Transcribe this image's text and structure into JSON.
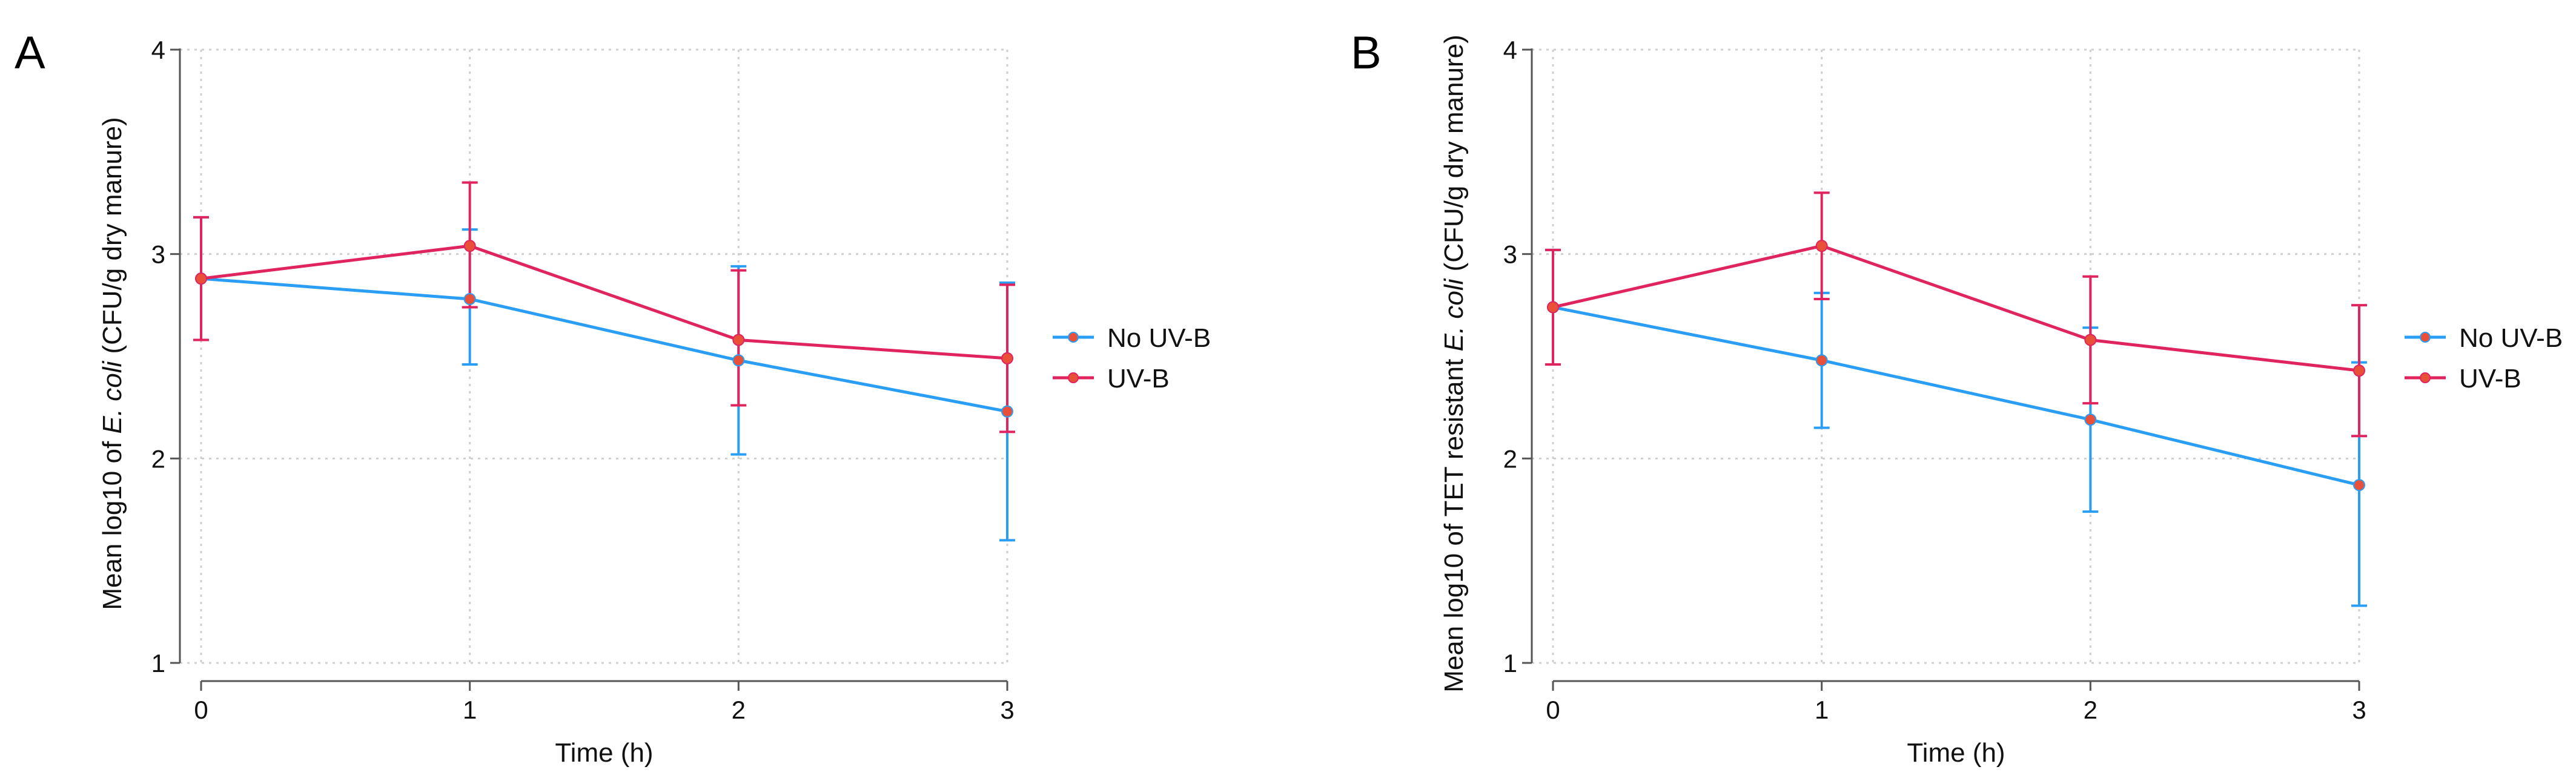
{
  "colors": {
    "no_uvb": "#2a9df4",
    "uvb": "#e0245e",
    "marker": "#e8503a",
    "grid": "#cfcfcf",
    "axis": "#555555"
  },
  "chart_data": [
    {
      "panel_label": "A",
      "type": "line",
      "xlabel": "Time (h)",
      "ylabel_parts": [
        "Mean log10 of ",
        "E. coli",
        " (CFU/g dry manure)"
      ],
      "x": [
        0,
        1,
        2,
        3
      ],
      "x_ticks": [
        "0",
        "1",
        "2",
        "3"
      ],
      "xlim": [
        0,
        3
      ],
      "y_ticks": [
        "1",
        "2",
        "3",
        "4"
      ],
      "ylim": [
        1,
        4
      ],
      "grid": true,
      "legend_position": "right",
      "series": [
        {
          "name": "No UV-B",
          "color": "#2a9df4",
          "values": [
            2.88,
            2.78,
            2.48,
            2.23
          ],
          "err_low": [
            2.58,
            2.46,
            2.02,
            1.6
          ],
          "err_high": [
            3.18,
            3.12,
            2.94,
            2.86
          ]
        },
        {
          "name": "UV-B",
          "color": "#e0245e",
          "values": [
            2.88,
            3.04,
            2.58,
            2.49
          ],
          "err_low": [
            2.58,
            2.74,
            2.26,
            2.13
          ],
          "err_high": [
            3.18,
            3.35,
            2.92,
            2.85
          ]
        }
      ]
    },
    {
      "panel_label": "B",
      "type": "line",
      "xlabel": "Time (h)",
      "ylabel_parts": [
        "Mean log10 of TET resistant ",
        "E. coli",
        " (CFU/g dry manure)"
      ],
      "x": [
        0,
        1,
        2,
        3
      ],
      "x_ticks": [
        "0",
        "1",
        "2",
        "3"
      ],
      "xlim": [
        0,
        3
      ],
      "y_ticks": [
        "1",
        "2",
        "3",
        "4"
      ],
      "ylim": [
        1,
        4
      ],
      "grid": true,
      "legend_position": "right",
      "series": [
        {
          "name": "No UV-B",
          "color": "#2a9df4",
          "values": [
            2.74,
            2.48,
            2.19,
            1.87
          ],
          "err_low": [
            2.46,
            2.15,
            1.74,
            1.28
          ],
          "err_high": [
            3.02,
            2.81,
            2.64,
            2.47
          ]
        },
        {
          "name": "UV-B",
          "color": "#e0245e",
          "values": [
            2.74,
            3.04,
            2.58,
            2.43
          ],
          "err_low": [
            2.46,
            2.78,
            2.27,
            2.11
          ],
          "err_high": [
            3.02,
            3.3,
            2.89,
            2.75
          ]
        }
      ]
    }
  ]
}
